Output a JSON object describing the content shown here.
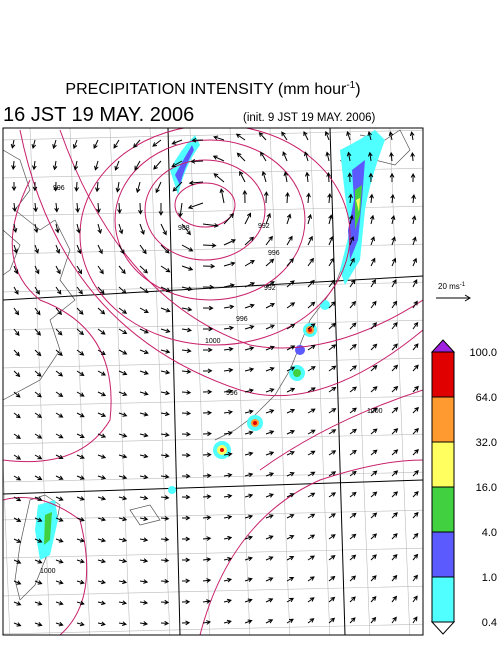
{
  "header": {
    "title": "PRECIPITATION INTENSITY (mm hour",
    "title_sup": "-1",
    "title_end": ")",
    "time": "16 JST 19 MAY. 2006",
    "init": "(init. 9 JST 19 MAY. 2006)"
  },
  "reference_vector": {
    "label": "20 ms",
    "sup": "-1"
  },
  "colorbar": {
    "labels": [
      "100.0",
      "64.0",
      "32.0",
      "16.0",
      "4.0",
      "1.0",
      "0.4"
    ],
    "colors": [
      "#e00000",
      "#ff9a30",
      "#ffff60",
      "#40d040",
      "#5a5aff",
      "#50ffff"
    ],
    "over_color": "#a020e0",
    "under_color": "#ffffff"
  },
  "isobar_labels": [
    "988",
    "992",
    "996",
    "992",
    "996",
    "1000",
    "996",
    "1000",
    "996",
    "1000"
  ]
}
